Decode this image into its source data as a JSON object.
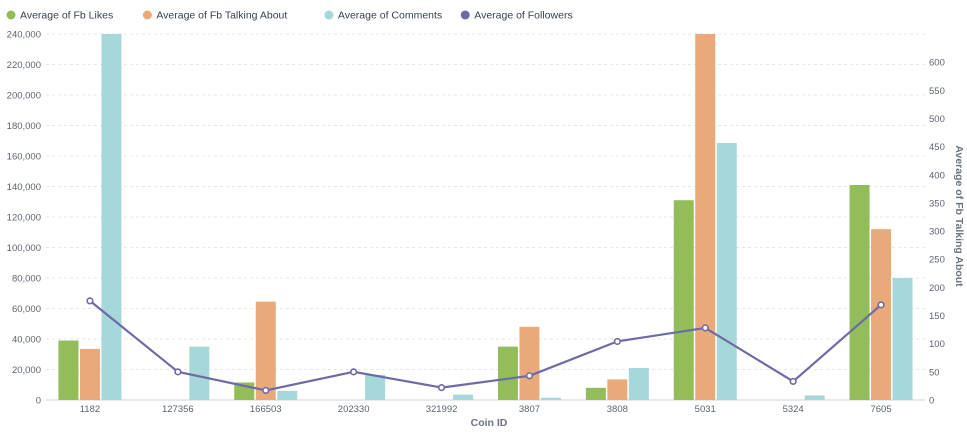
{
  "chart_data": {
    "type": "bar",
    "categories": [
      "1182",
      "127356",
      "166503",
      "202330",
      "321992",
      "3807",
      "3808",
      "5031",
      "5324",
      "7605"
    ],
    "series": [
      {
        "name": "Average of Fb Likes",
        "type": "bar",
        "axis": "left",
        "color": "#93bd5b",
        "values": [
          39000,
          0,
          11500,
          0,
          0,
          35000,
          8000,
          131000,
          0,
          141000
        ]
      },
      {
        "name": "Average of Fb Talking About",
        "type": "bar",
        "axis": "left",
        "color": "#eaa978",
        "values": [
          33500,
          0,
          64500,
          0,
          0,
          48000,
          13500,
          240000,
          0,
          112000
        ]
      },
      {
        "name": "Average of Comments",
        "type": "bar",
        "axis": "left",
        "color": "#a6d8d9",
        "values": [
          240000,
          35000,
          6000,
          16500,
          3500,
          1500,
          21000,
          168500,
          3000,
          80000
        ]
      },
      {
        "name": "Average of Followers",
        "type": "line",
        "axis": "right",
        "color": "#6d6aa6",
        "values": [
          176,
          50,
          17,
          50,
          22,
          43,
          104,
          128,
          33,
          169
        ]
      }
    ],
    "xlabel": "Coin ID",
    "ylabel": "",
    "y2label": "Average of Fb Talking About",
    "ylim": [
      0,
      240000
    ],
    "y2lim": [
      0,
      650
    ],
    "yticks": [
      "0",
      "20,000",
      "40,000",
      "60,000",
      "80,000",
      "100,000",
      "120,000",
      "140,000",
      "160,000",
      "180,000",
      "200,000",
      "220,000",
      "240,000"
    ],
    "y2ticks": [
      "0",
      "50",
      "100",
      "150",
      "200",
      "250",
      "300",
      "350",
      "400",
      "450",
      "500",
      "550",
      "600"
    ],
    "grid": true,
    "legend": "top-left"
  }
}
